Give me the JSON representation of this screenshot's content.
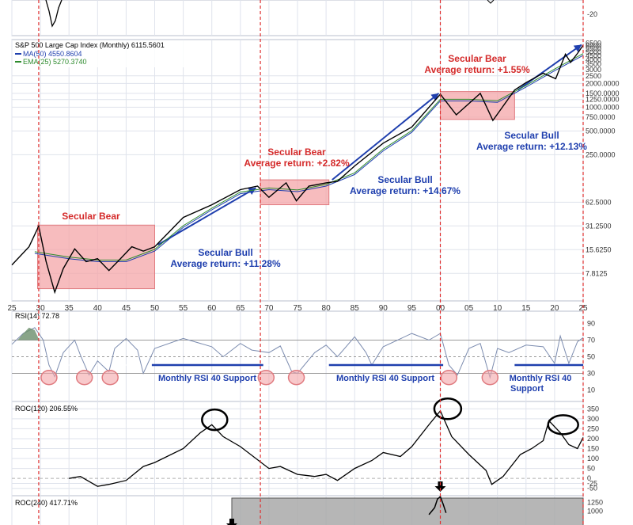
{
  "colors": {
    "bull": "#1f3fae",
    "bear": "#d42a2a",
    "bear_fill": "#f4a5a8",
    "bear_stroke": "#e07b80",
    "price": "#000000",
    "ma": "#1f3fae",
    "ema": "#2e8b2e",
    "rsi": "#7d8db0",
    "rsi_fill": "#6b8f6b",
    "roc": "#000000",
    "vline": "#e03030",
    "grid": "#dfe3ec",
    "ticks": "#333333",
    "panel_bg": "#f7f8fb",
    "gray_box": "#a9a9a9"
  },
  "chart_data": [
    {
      "type": "line",
      "panel": "roc-partial-top",
      "yticks": [
        "-20"
      ]
    },
    {
      "type": "line",
      "panel": "price",
      "legend": {
        "title": "S&P 500 Large Cap Index (Monthly) 6115.5601",
        "ma": "MA(50) 4550.8604",
        "ema": "EMA(25) 5270.3740"
      },
      "yscale": "log",
      "yticks": [
        "7.8125",
        "15.6250",
        "31.2500",
        "62.5000",
        "250.0000",
        "500.0000",
        "750.0000",
        "1000.0000",
        "1250.0000",
        "1500.0000",
        "2000.0000",
        "2500",
        "3000",
        "3500",
        "4000",
        "4500",
        "5000",
        "5500",
        "6000",
        "6500"
      ],
      "xticks": [
        "25",
        "30",
        "35",
        "40",
        "45",
        "50",
        "55",
        "60",
        "65",
        "70",
        "75",
        "80",
        "85",
        "90",
        "95",
        "00",
        "05",
        "10",
        "15",
        "20",
        "25"
      ],
      "series": [
        {
          "name": "S&P 500 Large Cap Index",
          "x": [
            1925,
            1928,
            1929.7,
            1931,
            1932.5,
            1934,
            1936,
            1938,
            1940,
            1942,
            1944,
            1946,
            1948,
            1950,
            1955,
            1960,
            1965,
            1968,
            1970,
            1973,
            1974.8,
            1977,
            1980,
            1982,
            1985,
            1990,
            1995,
            2000,
            2002.8,
            2007,
            2009.2,
            2013,
            2015,
            2018,
            2020.2,
            2021.9,
            2022.8,
            2024,
            2025
          ],
          "values": [
            10,
            17,
            31,
            11,
            4.5,
            9,
            16,
            11,
            12,
            8.5,
            12,
            17,
            15,
            17,
            40,
            58,
            90,
            100,
            72,
            110,
            65,
            100,
            110,
            115,
            180,
            350,
            560,
            1460,
            800,
            1500,
            680,
            1650,
            2050,
            2700,
            2300,
            4700,
            3700,
            4800,
            6115
          ]
        },
        {
          "name": "MA(50)",
          "x": [
            1929,
            1935,
            1940,
            1945,
            1950,
            1955,
            1960,
            1965,
            1970,
            1975,
            1980,
            1985,
            1990,
            1995,
            2000,
            2005,
            2010,
            2015,
            2020,
            2025
          ],
          "values": [
            14,
            12,
            11,
            11,
            15,
            30,
            50,
            80,
            90,
            85,
            100,
            140,
            280,
            480,
            1200,
            1200,
            1150,
            1800,
            2900,
            4550
          ]
        }
      ],
      "annotations": [
        {
          "id": "bear1",
          "lines": [
            "Secular Bear"
          ],
          "kind": "bear",
          "x0": 1929.5,
          "x1": 1950,
          "y0": 5,
          "y1": 32
        },
        {
          "id": "bull1",
          "lines": [
            "Secular Bull",
            "Average return:  +11.28%"
          ],
          "kind": "bull",
          "x0": 1950,
          "x1": 1968,
          "y0": 18,
          "y1": 95
        },
        {
          "id": "bear2",
          "lines": [
            "Secular Bear",
            "Average return:  +2.82%"
          ],
          "kind": "bear",
          "x0": 1968.5,
          "x1": 1980.5,
          "y0": 58,
          "y1": 120
        },
        {
          "id": "bull2",
          "lines": [
            "Secular Bull",
            "Average return:  +14.67%"
          ],
          "kind": "bull",
          "x0": 1980.5,
          "x1": 2000,
          "y0": 120,
          "y1": 1500
        },
        {
          "id": "bear3",
          "lines": [
            "Secular Bear",
            "Average return:  +1.55%"
          ],
          "kind": "bear",
          "x0": 2000,
          "x1": 2013,
          "y0": 700,
          "y1": 1580
        },
        {
          "id": "bull3",
          "lines": [
            "Secular Bull",
            "Average return:  +12.13%"
          ],
          "kind": "bull",
          "x0": 2013,
          "x1": 2025,
          "y0": 1650,
          "y1": 6200
        }
      ],
      "vlines": [
        1929.7,
        1968.5,
        2000,
        2025
      ]
    },
    {
      "type": "line",
      "panel": "rsi",
      "legend": "RSI(14) 72.78",
      "ylim": [
        0,
        100
      ],
      "yticks": [
        "10",
        "30",
        "50",
        "70",
        "90"
      ],
      "levels": [
        30,
        40,
        50,
        70
      ],
      "x": [
        1925,
        1927,
        1929,
        1930.5,
        1931.5,
        1932.5,
        1934,
        1936,
        1937,
        1938.5,
        1940,
        1942,
        1943,
        1945,
        1947,
        1948,
        1950,
        1955,
        1960,
        1962,
        1965,
        1967,
        1970,
        1972,
        1974,
        1975,
        1978,
        1980,
        1982,
        1985,
        1987,
        1988,
        1990,
        1995,
        1998,
        2000,
        2001.5,
        2003,
        2005,
        2007,
        2008.7,
        2010,
        2012,
        2015,
        2018,
        2020,
        2021,
        2022.5,
        2024,
        2025
      ],
      "values": [
        65,
        78,
        85,
        70,
        40,
        26,
        55,
        70,
        52,
        28,
        45,
        32,
        60,
        72,
        58,
        30,
        60,
        72,
        62,
        50,
        66,
        58,
        55,
        63,
        32,
        30,
        55,
        64,
        50,
        74,
        55,
        40,
        62,
        78,
        70,
        78,
        40,
        28,
        60,
        66,
        25,
        60,
        55,
        64,
        62,
        42,
        75,
        42,
        68,
        73
      ],
      "labels": [
        "Monthly RSI 40 Support",
        "Monthly RSI 40 Support",
        "Monthly RSI 40",
        "Support"
      ],
      "circles": [
        1931.5,
        1937.7,
        1942.2,
        1969.5,
        1974.8,
        2001.5,
        2008.7
      ]
    },
    {
      "type": "line",
      "panel": "roc120",
      "legend": "ROC(120) 206.55%",
      "ylim": [
        -75,
        375
      ],
      "yticks": [
        "-50",
        "-25",
        "0",
        "50",
        "100",
        "150",
        "200",
        "250",
        "300",
        "350"
      ],
      "x": [
        1935,
        1937,
        1940,
        1942,
        1945,
        1948,
        1950,
        1955,
        1958,
        1960,
        1962,
        1965,
        1970,
        1972,
        1975,
        1978,
        1980,
        1982,
        1985,
        1988,
        1990,
        1993,
        1995,
        1998,
        2000,
        2002,
        2005,
        2008,
        2009,
        2011,
        2014,
        2016,
        2018,
        2019,
        2021,
        2022.5,
        2024,
        2025
      ],
      "values": [
        0,
        10,
        -40,
        -30,
        -10,
        60,
        80,
        150,
        230,
        270,
        210,
        160,
        50,
        60,
        20,
        10,
        20,
        -10,
        50,
        90,
        130,
        110,
        160,
        270,
        340,
        210,
        120,
        40,
        -30,
        10,
        120,
        150,
        190,
        290,
        230,
        170,
        150,
        206
      ]
    },
    {
      "type": "line",
      "panel": "roc240",
      "legend": "ROC(240) 417.71%",
      "yticks": [
        "1250",
        "1000"
      ],
      "x": [
        1998,
        1999,
        1999.5,
        2000,
        2000.5,
        2001
      ],
      "values": [
        900,
        1100,
        1350,
        1420,
        1200,
        950
      ]
    }
  ]
}
